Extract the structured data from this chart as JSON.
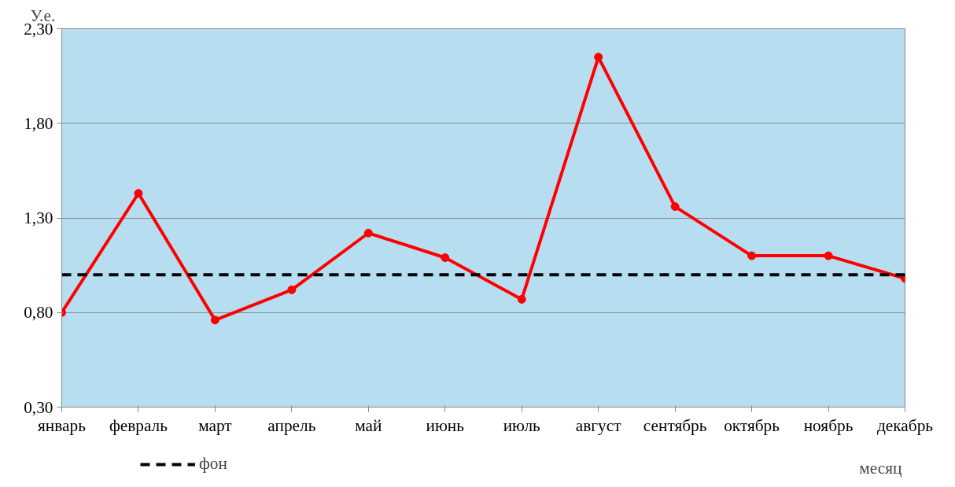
{
  "chart_data": {
    "type": "line",
    "xlabel": "месяц",
    "ylabel": "У.е.",
    "categories": [
      "январь",
      "февраль",
      "март",
      "апрель",
      "май",
      "июнь",
      "июль",
      "август",
      "сентябрь",
      "октябрь",
      "ноябрь",
      "декабрь"
    ],
    "series": [
      {
        "color": "#ff0000",
        "marker": "circle",
        "line_style": "solid",
        "values": [
          0.8,
          1.43,
          0.76,
          0.92,
          1.22,
          1.09,
          0.87,
          2.15,
          1.36,
          1.1,
          1.1,
          0.98
        ]
      },
      {
        "name": "фон",
        "color": "#000000",
        "marker": "none",
        "line_style": "dashed",
        "values": [
          1.0,
          1.0,
          1.0,
          1.0,
          1.0,
          1.0,
          1.0,
          1.0,
          1.0,
          1.0,
          1.0,
          1.0
        ]
      }
    ],
    "ylim": [
      0.3,
      2.3
    ],
    "yticks": [
      {
        "value": 0.3,
        "label": "0,30"
      },
      {
        "value": 0.8,
        "label": "0,80"
      },
      {
        "value": 1.3,
        "label": "1,30"
      },
      {
        "value": 1.8,
        "label": "1,80"
      },
      {
        "value": 2.3,
        "label": "2,30"
      }
    ],
    "grid": "y",
    "legend": "bottom left"
  }
}
